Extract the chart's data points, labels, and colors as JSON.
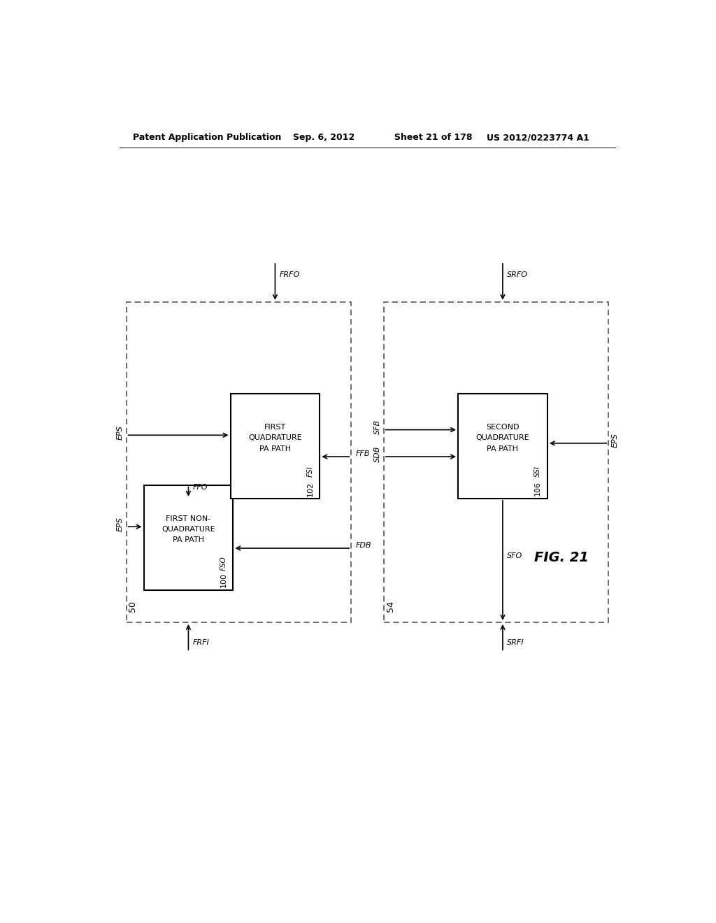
{
  "header_left": "Patent Application Publication",
  "header_mid1": "Sep. 6, 2012",
  "header_mid2": "Sheet 21 of 178",
  "header_right": "US 2012/0223774 A1",
  "fig_label": "FIG. 21",
  "background": "#ffffff"
}
